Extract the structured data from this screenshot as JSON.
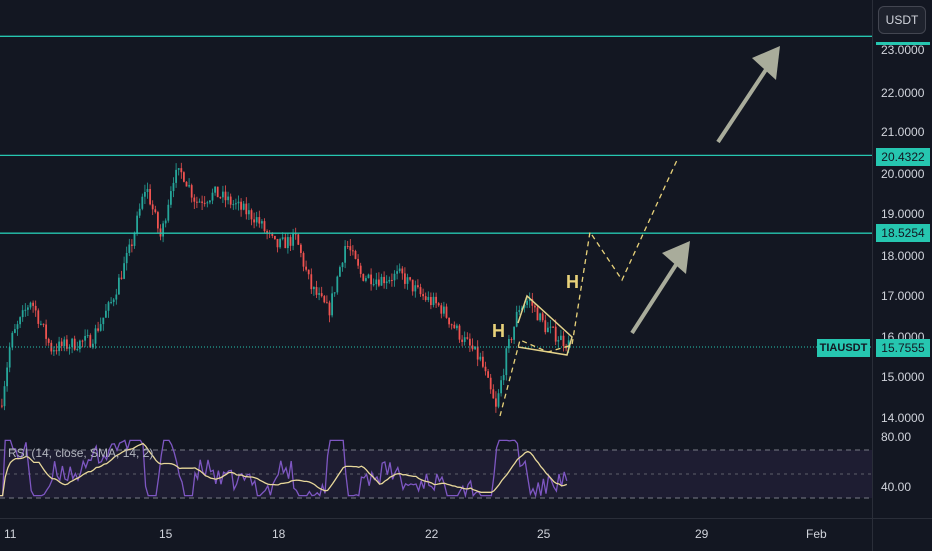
{
  "price_scale": {
    "currency": "USDT",
    "ticks": [
      "23.0000",
      "22.0000",
      "21.0000",
      "20.0000",
      "19.0000",
      "18.0000",
      "17.0000",
      "16.0000",
      "15.0000",
      "14.0000"
    ],
    "rsi_ticks": [
      "80.00",
      "40.00"
    ]
  },
  "levels": [
    {
      "label": "",
      "value": 23.35
    },
    {
      "label": "20.4322",
      "value": 20.4322
    },
    {
      "label": "18.5254",
      "value": 18.5254
    }
  ],
  "current": {
    "symbol": "TIAUSDT",
    "price": "15.7555"
  },
  "rsi": {
    "legend": "RSI (14, close, SMA, 14, 2)"
  },
  "annotations": {
    "h1": "H",
    "h2": "H"
  },
  "time_axis": {
    "labels": [
      "11",
      "15",
      "18",
      "22",
      "25",
      "29",
      "Feb"
    ]
  },
  "colors": {
    "background": "#131722",
    "up": "#26a69a",
    "down": "#ef5350",
    "level": "#26c6b0",
    "rsi_line": "#7e57c2",
    "rsi_sma": "#e8d89a",
    "projection": "#e8d27a",
    "arrow": "#a9ac9b"
  }
}
